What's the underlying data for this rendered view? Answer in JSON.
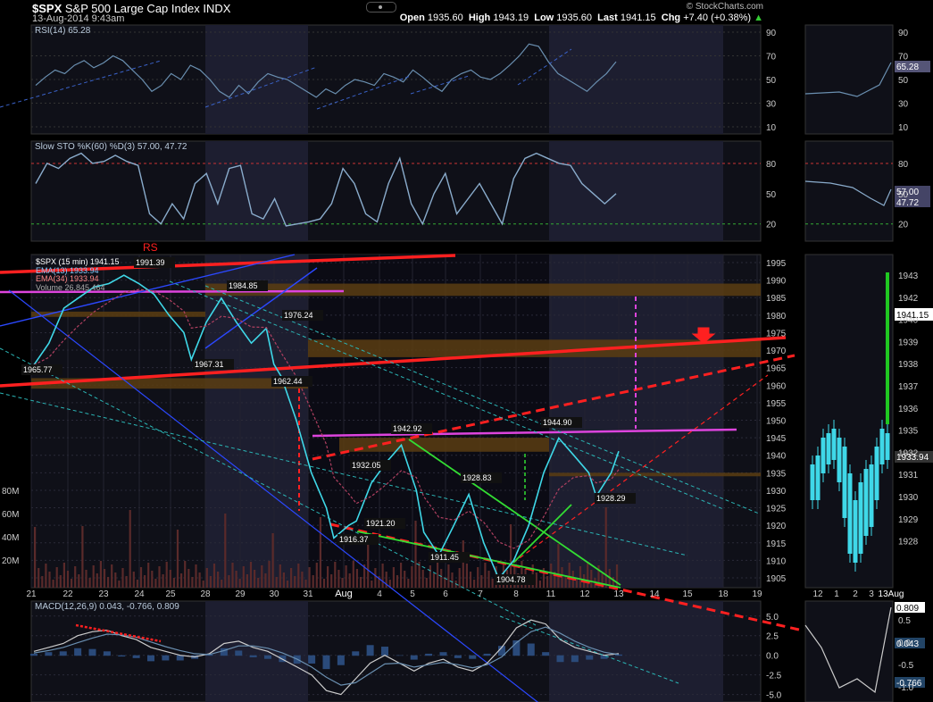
{
  "header": {
    "symbol": "$SPX",
    "name": "S&P 500 Large Cap Index",
    "exchange": "INDX",
    "datetime": "13-Aug-2014 9:43am",
    "open_label": "Open",
    "open": "1935.60",
    "high_label": "High",
    "high": "1943.19",
    "low_label": "Low",
    "low": "1935.60",
    "last_label": "Last",
    "last": "1941.15",
    "chg_label": "Chg",
    "chg": "+7.40 (+0.38%)",
    "brand": "© StockCharts.com"
  },
  "chart_data": [
    {
      "type": "line",
      "title": "RSI(14) 65.28",
      "ylim": [
        0,
        100
      ],
      "yticks": [
        "90",
        "70",
        "50",
        "30",
        "10"
      ],
      "side_value": "65.28",
      "series": [
        {
          "name": "RSI(14)",
          "values": [
            45,
            52,
            58,
            55,
            62,
            66,
            60,
            64,
            70,
            66,
            58,
            50,
            40,
            45,
            55,
            50,
            62,
            58,
            50,
            40,
            35,
            45,
            38,
            48,
            55,
            52,
            50,
            45,
            40,
            35,
            42,
            38,
            45,
            50,
            48,
            45,
            55,
            52,
            48,
            58,
            52,
            45,
            40,
            50,
            55,
            58,
            52,
            50,
            55,
            62,
            70,
            80,
            78,
            65,
            55,
            50,
            45,
            40,
            48,
            55,
            65
          ]
        }
      ]
    },
    {
      "type": "line",
      "title": "Slow STO %K(60) %D(3) 57.00, 47.72",
      "ylim": [
        0,
        100
      ],
      "yticks": [
        "80",
        "50",
        "20"
      ],
      "side_values": [
        "57.00",
        "47.72"
      ],
      "series": [
        {
          "name": "%K(60)",
          "values": [
            60,
            80,
            75,
            85,
            90,
            80,
            82,
            88,
            82,
            78,
            30,
            20,
            40,
            25,
            60,
            70,
            40,
            75,
            78,
            30,
            25,
            45,
            18,
            20,
            22,
            25,
            40,
            75,
            60,
            30,
            22,
            60,
            85,
            40,
            20,
            50,
            70,
            30,
            45,
            60,
            40,
            20,
            65,
            85,
            90,
            85,
            80,
            78,
            60,
            50,
            40,
            50
          ]
        }
      ]
    },
    {
      "type": "line",
      "title": "$SPX (15 min) 1941.15",
      "legend": [
        "$SPX (15 min) 1941.15",
        "EMA(13) 1933.94",
        "EMA(34) 1933.94",
        "Volume 26,845,464"
      ],
      "ylim": [
        1900,
        1997
      ],
      "yticks": [
        "1995",
        "1990",
        "1985",
        "1980",
        "1975",
        "1970",
        "1965",
        "1960",
        "1955",
        "1950",
        "1945",
        "1940",
        "1935",
        "1930",
        "1925",
        "1920",
        "1915",
        "1910",
        "1905"
      ],
      "x_labels": [
        "21",
        "22",
        "23",
        "24",
        "25",
        "28",
        "29",
        "30",
        "31",
        "Aug",
        "4",
        "5",
        "6",
        "7",
        "8",
        "11",
        "12",
        "13",
        "14",
        "15",
        "18",
        "19"
      ],
      "volume_labels": [
        "80M",
        "60M",
        "40M",
        "20M"
      ],
      "annotations": [
        "RS",
        "1991.39",
        "1984.85",
        "1976.24",
        "1965.77",
        "1967.31",
        "1962.44",
        "1942.92",
        "1944.90",
        "1932.05",
        "1928.83",
        "1928.29",
        "1921.20",
        "1916.37",
        "1911.45",
        "1904.78"
      ],
      "side_price": "1941.15",
      "side_ema": "1933.94",
      "side_yticks": [
        "1943",
        "1942",
        "1940",
        "1939",
        "1938",
        "1937",
        "1936",
        "1935",
        "1932",
        "1931",
        "1930",
        "1929",
        "1928"
      ],
      "side_x_labels": [
        "12",
        "1",
        "2",
        "3",
        "13Aug"
      ],
      "series": [
        {
          "name": "$SPX (15 min)",
          "points": [
            [
              0,
              1965.77
            ],
            [
              2,
              1972
            ],
            [
              4,
              1982
            ],
            [
              6,
              1985
            ],
            [
              8,
              1988
            ],
            [
              10,
              1989
            ],
            [
              12,
              1991.39
            ],
            [
              14,
              1989
            ],
            [
              16,
              1986
            ],
            [
              18,
              1980
            ],
            [
              20,
              1975
            ],
            [
              21,
              1967.31
            ],
            [
              23,
              1978
            ],
            [
              25,
              1984.85
            ],
            [
              27,
              1978
            ],
            [
              29,
              1972
            ],
            [
              31,
              1976.24
            ],
            [
              32,
              1966
            ],
            [
              33,
              1962.44
            ],
            [
              35,
              1950
            ],
            [
              37,
              1935
            ],
            [
              39,
              1925
            ],
            [
              40,
              1916.37
            ],
            [
              42,
              1920
            ],
            [
              43,
              1921.2
            ],
            [
              45,
              1932.05
            ],
            [
              47,
              1938
            ],
            [
              49,
              1942.92
            ],
            [
              51,
              1930
            ],
            [
              52,
              1918
            ],
            [
              54,
              1911.45
            ],
            [
              56,
              1920
            ],
            [
              58,
              1928.83
            ],
            [
              60,
              1915
            ],
            [
              62,
              1904.78
            ],
            [
              64,
              1910
            ],
            [
              66,
              1920
            ],
            [
              68,
              1935
            ],
            [
              70,
              1944.9
            ],
            [
              72,
              1940
            ],
            [
              74,
              1935
            ],
            [
              75,
              1928.29
            ],
            [
              77,
              1935
            ],
            [
              78,
              1941.15
            ]
          ]
        }
      ]
    },
    {
      "type": "line",
      "title": "MACD(12,26,9) 0.043, -0.766, 0.809",
      "ylim": [
        -5.5,
        6
      ],
      "yticks": [
        "5.0",
        "2.5",
        "0.0",
        "-2.5",
        "-5.0"
      ],
      "side_values": [
        "0.809",
        "0.043",
        "-0.766"
      ],
      "side_yticks": [
        "0.5",
        "0.0",
        "-0.5",
        "-1.0"
      ],
      "series": [
        {
          "name": "MACD",
          "values": [
            0.5,
            1,
            1.5,
            2.5,
            3,
            3.2,
            2.5,
            2,
            1,
            0.5,
            0,
            -0.2,
            0.2,
            1.5,
            1.8,
            1,
            0.5,
            -0.5,
            -1.5,
            -2.5,
            -4.5,
            -5,
            -3,
            -1,
            0,
            -1,
            -2,
            -1,
            -0.5,
            -1.5,
            -2,
            -1,
            1,
            3.5,
            4.5,
            4,
            2,
            1,
            0.5,
            0,
            0.2
          ]
        },
        {
          "name": "Signal",
          "values": [
            0.3,
            0.6,
            1,
            1.6,
            2.2,
            2.7,
            2.6,
            2.3,
            1.7,
            1.1,
            0.6,
            0.2,
            0.1,
            0.6,
            1.2,
            1.2,
            0.9,
            0.3,
            -0.5,
            -1.5,
            -2.8,
            -3.8,
            -3.5,
            -2.3,
            -1.1,
            -1,
            -1.5,
            -1.2,
            -0.9,
            -1.2,
            -1.6,
            -1.2,
            -0.2,
            1.6,
            3,
            3.6,
            2.8,
            1.8,
            1,
            0.4,
            0.1
          ]
        }
      ]
    }
  ]
}
